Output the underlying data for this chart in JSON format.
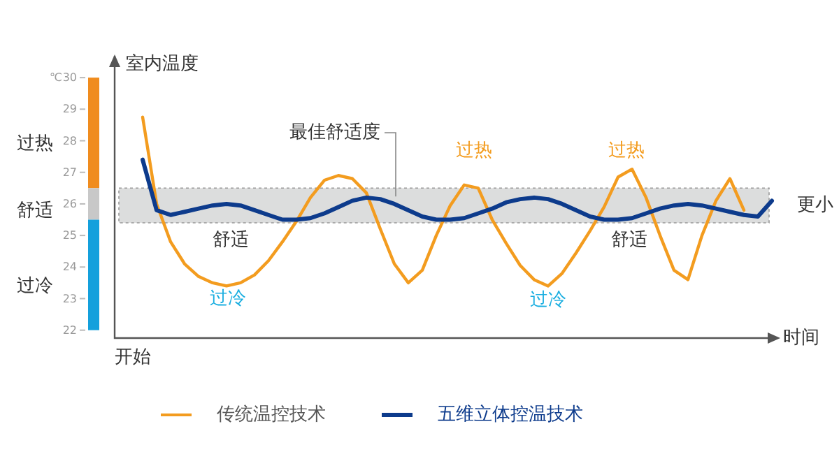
{
  "chart_data": {
    "type": "line",
    "xlabel": "时间",
    "ylabel": "室内温度",
    "categories": [
      null,
      null,
      null,
      null,
      null,
      null,
      null,
      null,
      null,
      null,
      null,
      null,
      null,
      null,
      null,
      null,
      null,
      null,
      null,
      null,
      null,
      null,
      null,
      null,
      null,
      null,
      null,
      null,
      null,
      null,
      null,
      null,
      null,
      null,
      null,
      null,
      null,
      null,
      null,
      null,
      null,
      null,
      null,
      null,
      null,
      null
    ],
    "ylim": [
      21.75,
      30.6
    ],
    "yticks": [
      22,
      23,
      24,
      25,
      26,
      27,
      28,
      29,
      30
    ],
    "tick_labels": "y",
    "legend": "bottom",
    "series": [
      {
        "name": "传统温控技术",
        "color": "#f39c1f",
        "values": [
          28.75,
          26.0,
          24.8,
          24.1,
          23.7,
          23.5,
          23.4,
          23.5,
          23.75,
          24.2,
          24.8,
          25.45,
          26.2,
          26.75,
          26.9,
          26.8,
          26.35,
          25.2,
          24.1,
          23.5,
          23.9,
          25.0,
          25.95,
          26.6,
          26.5,
          25.5,
          24.75,
          24.05,
          23.6,
          23.4,
          23.8,
          24.45,
          25.15,
          25.9,
          26.85,
          27.1,
          26.2,
          25.0,
          23.9,
          23.6,
          25.0,
          26.1,
          26.8,
          25.8,
          null,
          null
        ]
      },
      {
        "name": "五维立体控温技术",
        "color": "#0d3b8c",
        "values": [
          27.4,
          25.8,
          25.65,
          25.75,
          25.85,
          25.95,
          26.0,
          25.95,
          25.8,
          25.65,
          25.5,
          25.5,
          25.55,
          25.7,
          25.9,
          26.1,
          26.2,
          26.15,
          26.0,
          25.8,
          25.6,
          25.5,
          25.5,
          25.55,
          25.7,
          25.85,
          26.05,
          26.15,
          26.2,
          26.15,
          26.0,
          25.8,
          25.6,
          25.5,
          25.5,
          25.55,
          25.7,
          25.85,
          25.95,
          26.0,
          25.95,
          25.85,
          25.75,
          25.65,
          25.6,
          26.1
        ]
      }
    ],
    "bands": [
      {
        "axis": "y",
        "from": 25.4,
        "to": 26.5,
        "label": "最佳舒适度",
        "color": "#dcdddd"
      }
    ],
    "annotations": [
      "过热",
      "过热",
      "过冷",
      "过冷",
      "舒适",
      "舒适",
      "更小",
      "过热",
      "舒适",
      "过冷",
      "开始",
      "℃"
    ]
  }
}
